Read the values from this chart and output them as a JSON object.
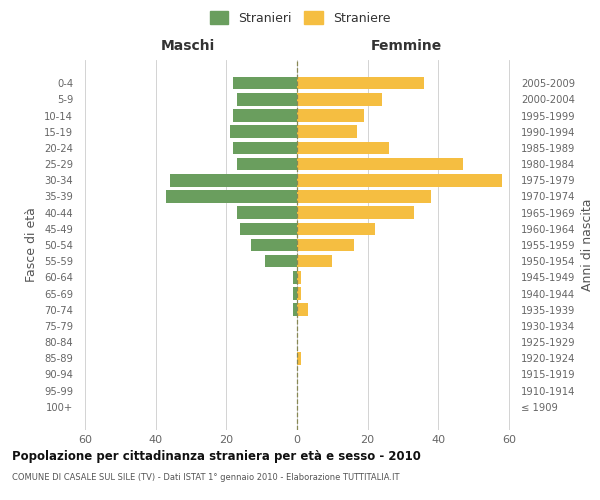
{
  "age_groups": [
    "0-4",
    "5-9",
    "10-14",
    "15-19",
    "20-24",
    "25-29",
    "30-34",
    "35-39",
    "40-44",
    "45-49",
    "50-54",
    "55-59",
    "60-64",
    "65-69",
    "70-74",
    "75-79",
    "80-84",
    "85-89",
    "90-94",
    "95-99",
    "100+"
  ],
  "birth_years": [
    "2005-2009",
    "2000-2004",
    "1995-1999",
    "1990-1994",
    "1985-1989",
    "1980-1984",
    "1975-1979",
    "1970-1974",
    "1965-1969",
    "1960-1964",
    "1955-1959",
    "1950-1954",
    "1945-1949",
    "1940-1944",
    "1935-1939",
    "1930-1934",
    "1925-1929",
    "1920-1924",
    "1915-1919",
    "1910-1914",
    "≤ 1909"
  ],
  "males": [
    18,
    17,
    18,
    19,
    18,
    17,
    36,
    37,
    17,
    16,
    13,
    9,
    1,
    1,
    1,
    0,
    0,
    0,
    0,
    0,
    0
  ],
  "females": [
    36,
    24,
    19,
    17,
    26,
    47,
    58,
    38,
    33,
    22,
    16,
    10,
    1,
    1,
    3,
    0,
    0,
    1,
    0,
    0,
    0
  ],
  "male_color": "#6a9e5e",
  "female_color": "#f5be41",
  "center_line_color": "#888855",
  "background_color": "#ffffff",
  "grid_color": "#cccccc",
  "title": "Popolazione per cittadinanza straniera per età e sesso - 2010",
  "subtitle": "COMUNE DI CASALE SUL SILE (TV) - Dati ISTAT 1° gennaio 2010 - Elaborazione TUTTITALIA.IT",
  "ylabel_left": "Fasce di età",
  "ylabel_right": "Anni di nascita",
  "legend_male": "Stranieri",
  "legend_female": "Straniere",
  "xlim": 62,
  "maschi_label": "Maschi",
  "femmine_label": "Femmine"
}
